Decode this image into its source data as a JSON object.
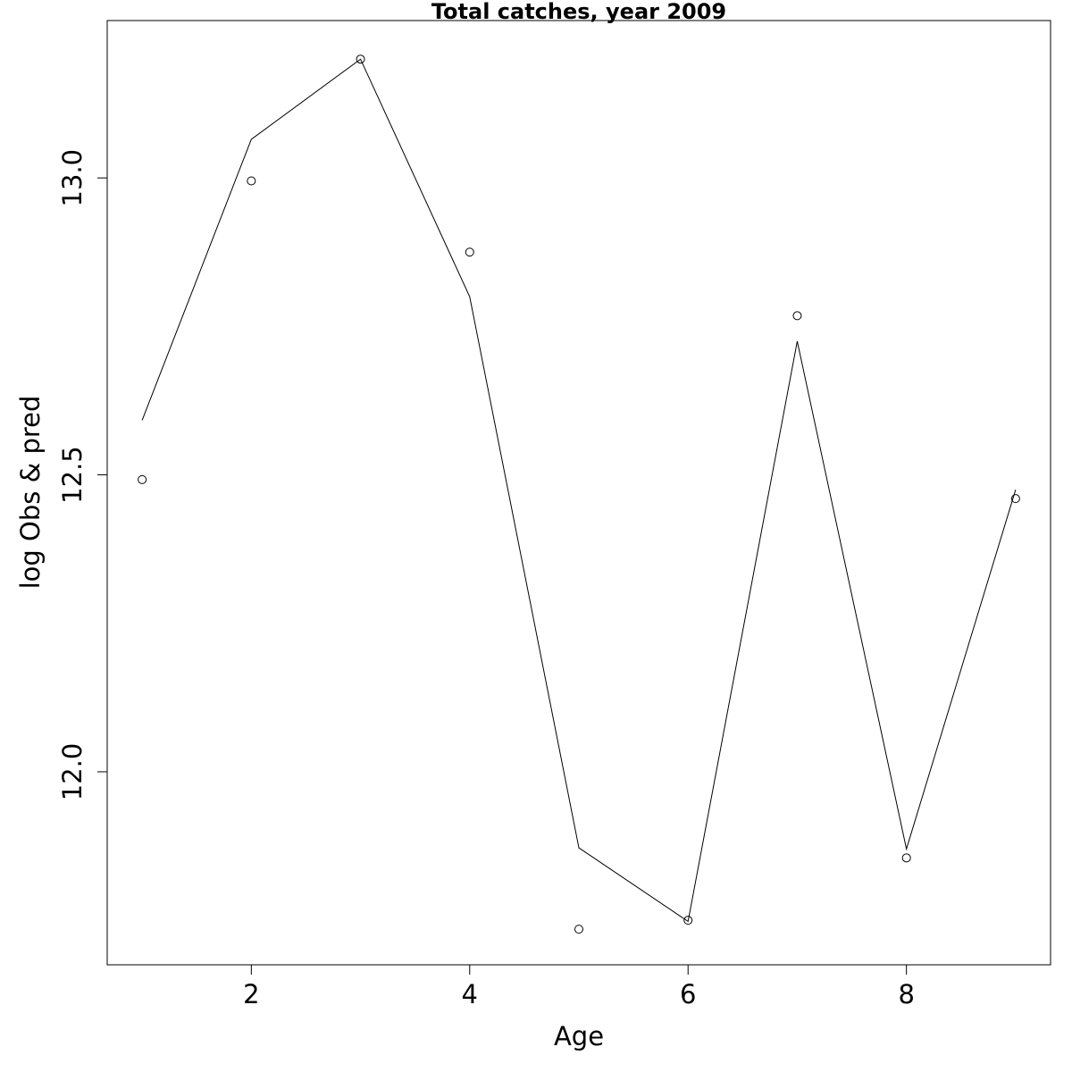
{
  "chart_data": {
    "type": "line",
    "title": "Total catches, year 2009",
    "xlabel": "Age",
    "ylabel": "log Obs & pred",
    "xlim": [
      0.68,
      9.32
    ],
    "ylim": [
      11.675,
      13.265
    ],
    "x_ticks": [
      {
        "value": 2,
        "label": "2"
      },
      {
        "value": 4,
        "label": "4"
      },
      {
        "value": 6,
        "label": "6"
      },
      {
        "value": 8,
        "label": "8"
      }
    ],
    "y_ticks": [
      {
        "value": 12.0,
        "label": "12.0"
      },
      {
        "value": 12.5,
        "label": "12.5"
      },
      {
        "value": 13.0,
        "label": "13.0"
      }
    ],
    "x": [
      1,
      2,
      3,
      4,
      5,
      6,
      7,
      8,
      9
    ],
    "series": [
      {
        "style": "line",
        "values": [
          12.592,
          13.065,
          13.2,
          12.8,
          11.872,
          11.748,
          12.725,
          11.87,
          12.475
        ]
      },
      {
        "style": "points",
        "values": [
          12.492,
          12.995,
          13.2,
          12.875,
          11.735,
          11.75,
          12.768,
          11.855,
          12.46
        ]
      }
    ],
    "grid": false,
    "colors": {
      "line": "#000000",
      "points": "#000000",
      "frame": "#000000"
    }
  }
}
